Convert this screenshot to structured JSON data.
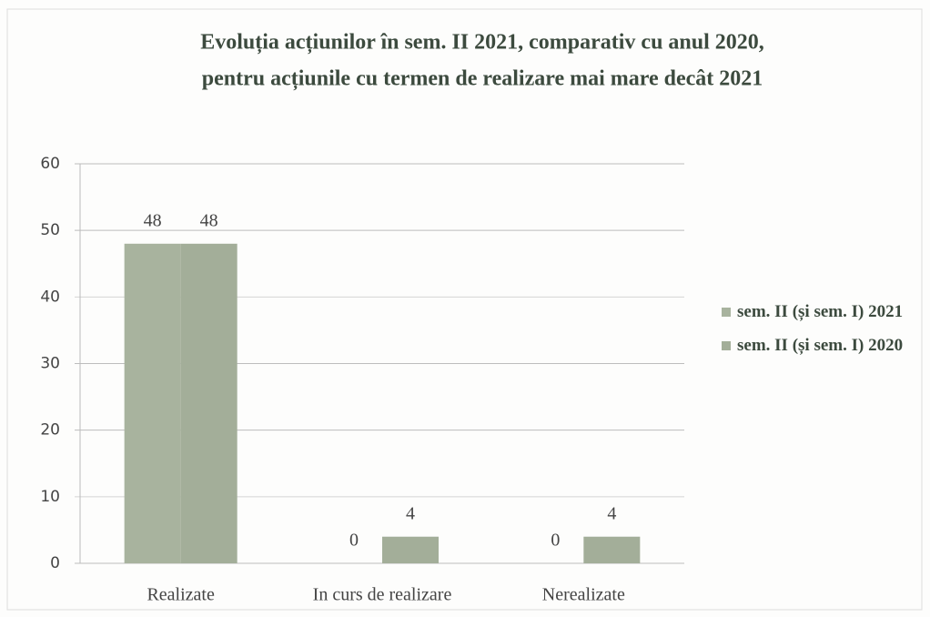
{
  "chart_data": {
    "type": "bar",
    "title": "Evoluția acțiunilor în sem. II 2021, comparativ cu anul 2020,",
    "subtitle": "pentru acțiunile cu termen de realizare mai mare decât 2021",
    "categories": [
      "Realizate",
      "In curs de realizare",
      "Nerealizate"
    ],
    "series": [
      {
        "name": "sem. II  (și sem. I) 2021",
        "color": "#a8b39e",
        "values": [
          48,
          0,
          0
        ]
      },
      {
        "name": "sem. II (și sem. I) 2020",
        "color": "#a3ae99",
        "values": [
          48,
          4,
          4
        ]
      }
    ],
    "ylim": [
      0,
      60
    ],
    "yticks": [
      0,
      10,
      20,
      30,
      40,
      50,
      60
    ],
    "grid": true,
    "legend": "right"
  }
}
